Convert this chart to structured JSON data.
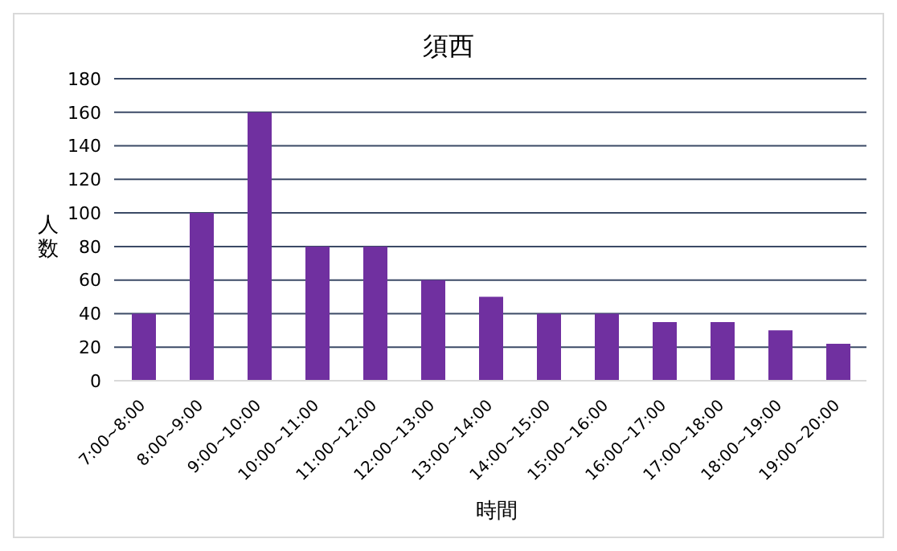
{
  "chart_data": {
    "type": "bar",
    "title": "須西",
    "xlabel": "時間",
    "ylabel": "人数",
    "categories": [
      "7:00~8:00",
      "8:00~9:00",
      "9:00~10:00",
      "10:00~11:00",
      "11:00~12:00",
      "12:00~13:00",
      "13:00~14:00",
      "14:00~15:00",
      "15:00~16:00",
      "16:00~17:00",
      "17:00~18:00",
      "18:00~19:00",
      "19:00~20:00"
    ],
    "values": [
      40,
      100,
      160,
      80,
      80,
      60,
      50,
      40,
      40,
      35,
      35,
      30,
      22
    ],
    "color": "#7030a0",
    "ylim": [
      0,
      180
    ],
    "yticks": [
      0,
      20,
      40,
      60,
      80,
      100,
      120,
      140,
      160,
      180
    ],
    "grid": "y",
    "legend": false
  }
}
